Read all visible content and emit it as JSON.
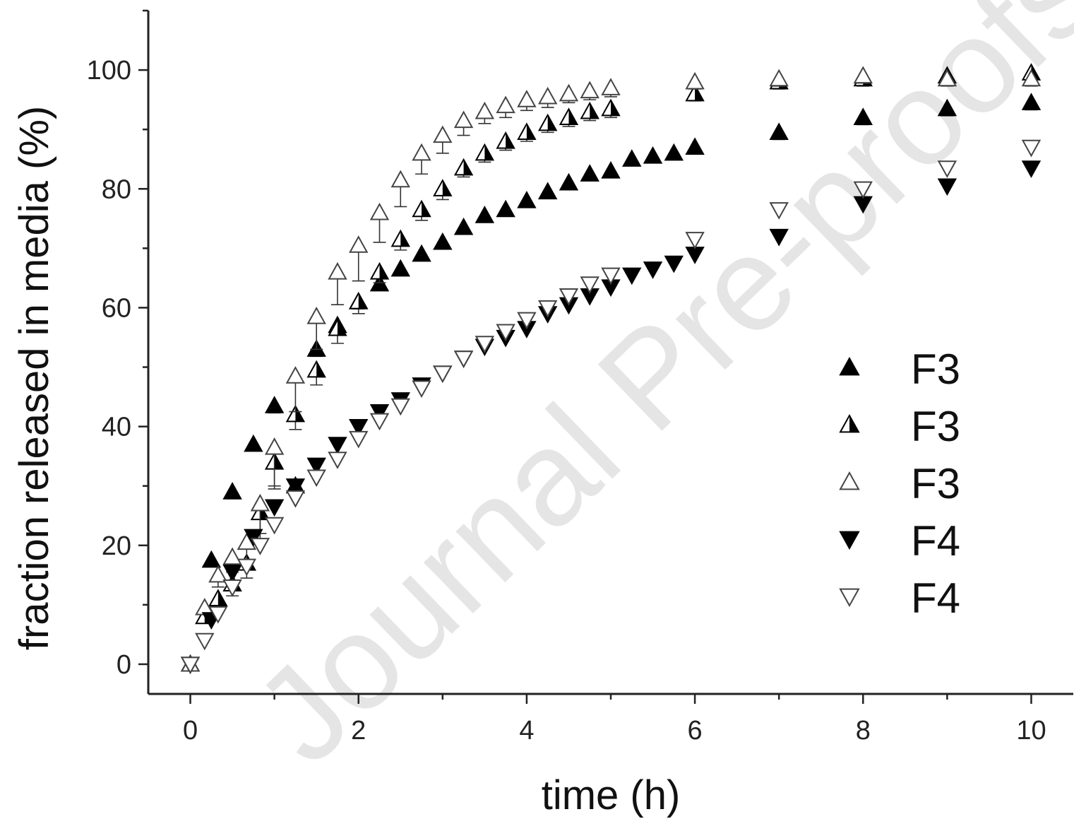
{
  "watermark": "Journal Pre-proofs",
  "chart_data": {
    "type": "scatter",
    "title": "",
    "xlabel": "time (h)",
    "ylabel": "fraction released in media (%)",
    "xlim": [
      -0.5,
      10.5
    ],
    "ylim": [
      -5,
      110
    ],
    "xticks": [
      0,
      2,
      4,
      6,
      8,
      10
    ],
    "yticks": [
      0,
      20,
      40,
      60,
      80,
      100
    ],
    "grid": false,
    "legend_position": "right",
    "series": [
      {
        "name": "F3",
        "marker": "triangle-up-filled",
        "x": [
          0,
          0.25,
          0.5,
          0.75,
          1.0,
          1.25,
          1.5,
          1.75,
          2.0,
          2.25,
          2.5,
          2.75,
          3.0,
          3.25,
          3.5,
          3.75,
          4.0,
          4.25,
          4.5,
          4.75,
          5.0,
          5.25,
          5.5,
          5.75,
          6.0,
          7.0,
          8.0,
          9.0,
          10.0
        ],
        "y": [
          0,
          17.5,
          29,
          37,
          43.5,
          30,
          53,
          57,
          61,
          64,
          66.5,
          69,
          71,
          73.5,
          75.5,
          76.5,
          78,
          79.5,
          81,
          82.5,
          83,
          85,
          85.5,
          86,
          87,
          89.5,
          92,
          93.5,
          94.5
        ],
        "err": [
          0,
          0.8,
          0.8,
          0.8,
          1.2,
          0.8,
          1.2,
          1.2,
          1.2,
          1,
          1,
          1,
          1,
          1,
          1,
          1,
          1,
          1,
          1,
          1,
          1,
          1,
          1,
          1,
          1,
          1.2,
          1.2,
          1.2,
          1.2
        ]
      },
      {
        "name": "F3",
        "marker": "triangle-up-half",
        "x": [
          0,
          0.17,
          0.33,
          0.5,
          0.67,
          0.83,
          1.0,
          1.25,
          1.5,
          1.75,
          2.0,
          2.25,
          2.5,
          2.75,
          3.0,
          3.25,
          3.5,
          3.75,
          4.0,
          4.25,
          4.5,
          4.75,
          5.0,
          6.0,
          7.0,
          8.0,
          9.0,
          10.0
        ],
        "y": [
          0,
          8,
          11,
          13.5,
          17,
          25.5,
          34,
          42,
          49.5,
          56.5,
          61,
          66,
          71.5,
          76.5,
          80,
          83.5,
          86,
          88,
          89.5,
          91,
          92,
          93,
          93.5,
          96,
          98,
          98.5,
          99,
          99.5
        ],
        "err": [
          0,
          1,
          1.5,
          2,
          2.5,
          3.5,
          4.5,
          2.5,
          2.5,
          2.5,
          2,
          1.8,
          1.8,
          1.8,
          1.8,
          1.5,
          1.5,
          1.5,
          1.5,
          1.5,
          1.5,
          1.5,
          1.5,
          1.2,
          1.2,
          1.2,
          1.2,
          1.2
        ]
      },
      {
        "name": "F3",
        "marker": "triangle-up-open",
        "x": [
          0,
          0.17,
          0.33,
          0.5,
          0.67,
          0.83,
          1.0,
          1.25,
          1.5,
          1.75,
          2.0,
          2.25,
          2.5,
          2.75,
          3.0,
          3.25,
          3.5,
          3.75,
          4.0,
          4.25,
          4.5,
          4.75,
          5.0,
          6.0,
          7.0,
          8.0,
          9.0,
          10.0
        ],
        "y": [
          0,
          9.5,
          15,
          18,
          20.5,
          27,
          36.5,
          48.5,
          58.5,
          66,
          70.5,
          76,
          81.5,
          86,
          89,
          91.5,
          93,
          94,
          95,
          95.5,
          96,
          96.5,
          97,
          98,
          98.5,
          99,
          98.5,
          98.5
        ],
        "err": [
          0,
          1,
          2,
          2.5,
          3,
          6,
          6.5,
          6,
          5.5,
          5.5,
          6,
          5,
          4.5,
          3.5,
          3,
          2.5,
          2,
          2,
          1.8,
          1.8,
          1.5,
          1.5,
          1.5,
          1.2,
          1.2,
          1.2,
          1.2,
          1.2
        ]
      },
      {
        "name": "F4",
        "marker": "triangle-down-filled",
        "x": [
          0,
          0.25,
          0.5,
          0.75,
          1.0,
          1.25,
          1.5,
          1.75,
          2.0,
          2.25,
          2.5,
          2.75,
          3.0,
          3.25,
          3.5,
          3.75,
          4.0,
          4.25,
          4.5,
          4.75,
          5.0,
          5.25,
          5.5,
          5.75,
          6.0,
          7.0,
          8.0,
          9.0,
          10.0
        ],
        "y": [
          0,
          7.5,
          15.5,
          21.5,
          26.5,
          30,
          33.5,
          37,
          40,
          42.5,
          44.5,
          47,
          49,
          51.5,
          53.5,
          55,
          56.5,
          59,
          60.5,
          62,
          63.5,
          65.5,
          66.5,
          67.5,
          69,
          72,
          77.5,
          80.5,
          83.5
        ],
        "err": [
          0,
          0.8,
          0.8,
          0.8,
          0.8,
          0.8,
          0.8,
          0.8,
          0.8,
          0.8,
          0.8,
          0.8,
          0.8,
          0.8,
          0.8,
          0.8,
          0.8,
          0.8,
          0.8,
          0.8,
          0.8,
          0.8,
          0.8,
          0.8,
          0.8,
          1,
          1,
          1,
          1
        ]
      },
      {
        "name": "F4",
        "marker": "triangle-down-open",
        "x": [
          0,
          0.17,
          0.33,
          0.5,
          0.67,
          0.83,
          1.0,
          1.25,
          1.5,
          1.75,
          2.0,
          2.25,
          2.5,
          2.75,
          3.0,
          3.25,
          3.5,
          3.75,
          4.0,
          4.25,
          4.5,
          4.75,
          5.0,
          6.0,
          7.0,
          8.0,
          9.0,
          10.0
        ],
        "y": [
          0,
          4,
          8.5,
          13,
          16.5,
          20,
          23.5,
          28,
          31.5,
          34.5,
          38,
          41,
          43.5,
          46.5,
          49,
          51.5,
          54,
          56,
          58,
          60,
          62,
          64,
          65.5,
          71.5,
          76.5,
          80,
          83.5,
          87
        ],
        "err": [
          0,
          0.8,
          0.8,
          0.8,
          0.8,
          0.8,
          0.8,
          0.8,
          0.8,
          0.8,
          0.8,
          0.8,
          0.8,
          0.8,
          0.8,
          0.8,
          0.8,
          0.8,
          0.8,
          0.8,
          0.8,
          0.8,
          0.8,
          1,
          1,
          1,
          1,
          1
        ]
      }
    ]
  }
}
